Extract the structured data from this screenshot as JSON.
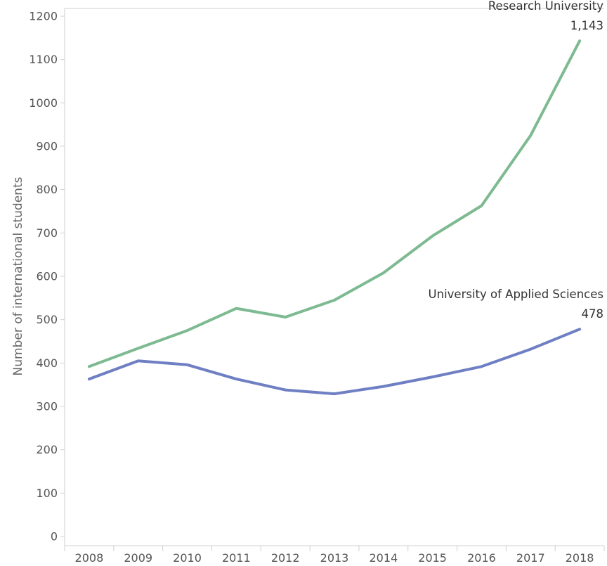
{
  "chart_data": {
    "type": "line",
    "title": "",
    "xlabel": "",
    "ylabel": "Number of international students",
    "categories": [
      "2008",
      "2009",
      "2010",
      "2011",
      "2012",
      "2013",
      "2014",
      "2015",
      "2016",
      "2017",
      "2018"
    ],
    "yticks": [
      0,
      100,
      200,
      300,
      400,
      500,
      600,
      700,
      800,
      900,
      1000,
      1100,
      1200
    ],
    "ylim": [
      0,
      1200
    ],
    "grid": false,
    "series": [
      {
        "name": "Research University",
        "color": "#7dba91",
        "values": [
          392,
          434,
          475,
          526,
          506,
          545,
          608,
          693,
          763,
          925,
          1143
        ],
        "end_label": "1,143"
      },
      {
        "name": "University of Applied Sciences",
        "color": "#6f7fc3",
        "values": [
          363,
          405,
          396,
          363,
          338,
          329,
          346,
          368,
          392,
          432,
          478
        ],
        "end_label": "478"
      }
    ]
  }
}
